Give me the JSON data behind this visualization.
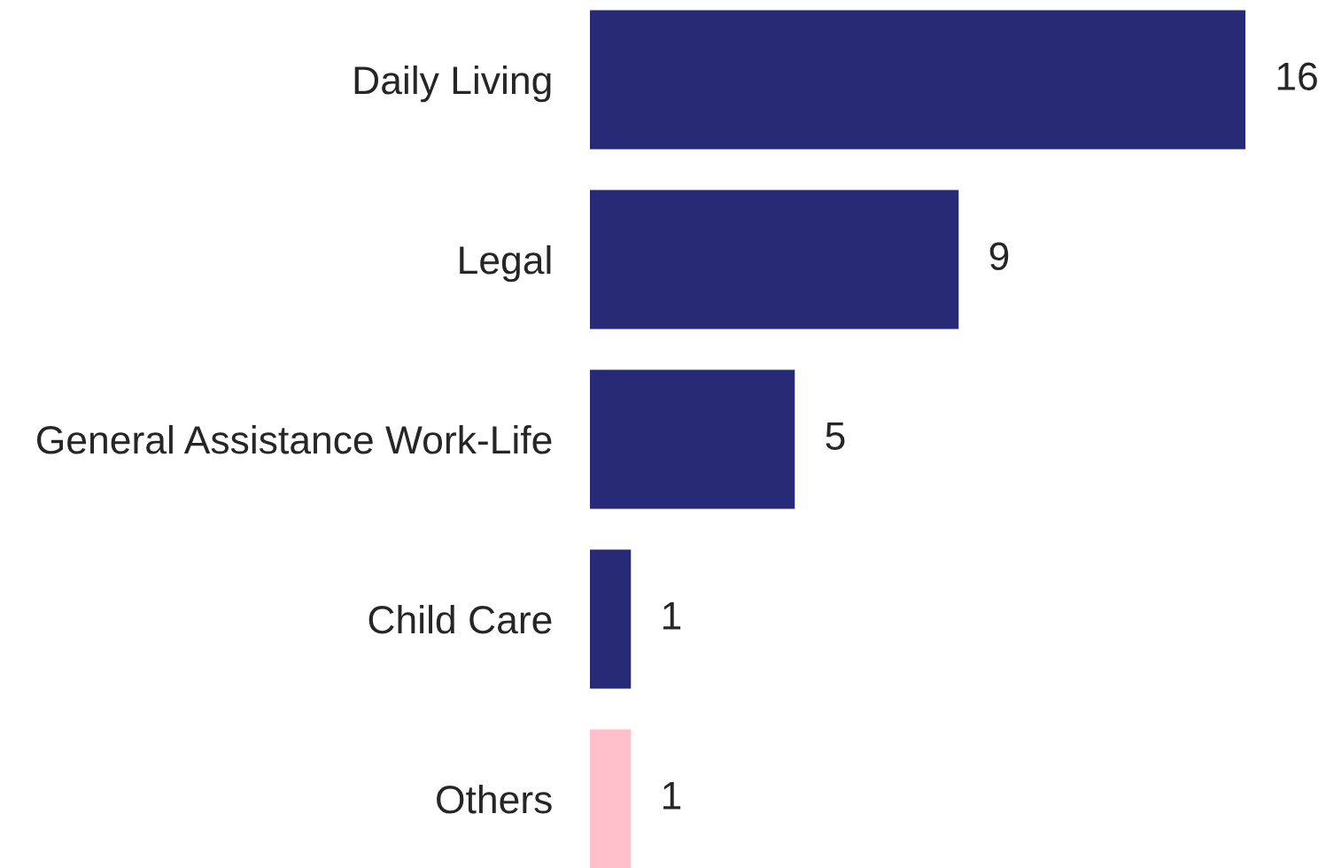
{
  "chart_data": {
    "type": "bar",
    "orientation": "horizontal",
    "categories": [
      "Daily Living",
      "Legal",
      "General Assistance Work-Life",
      "Child Care",
      "Others"
    ],
    "values": [
      16,
      9,
      5,
      1,
      1
    ],
    "colors": [
      "#272a75",
      "#272a75",
      "#272a75",
      "#272a75",
      "#ffc0cb"
    ],
    "data_labels": true,
    "grid": false,
    "legend": false
  }
}
